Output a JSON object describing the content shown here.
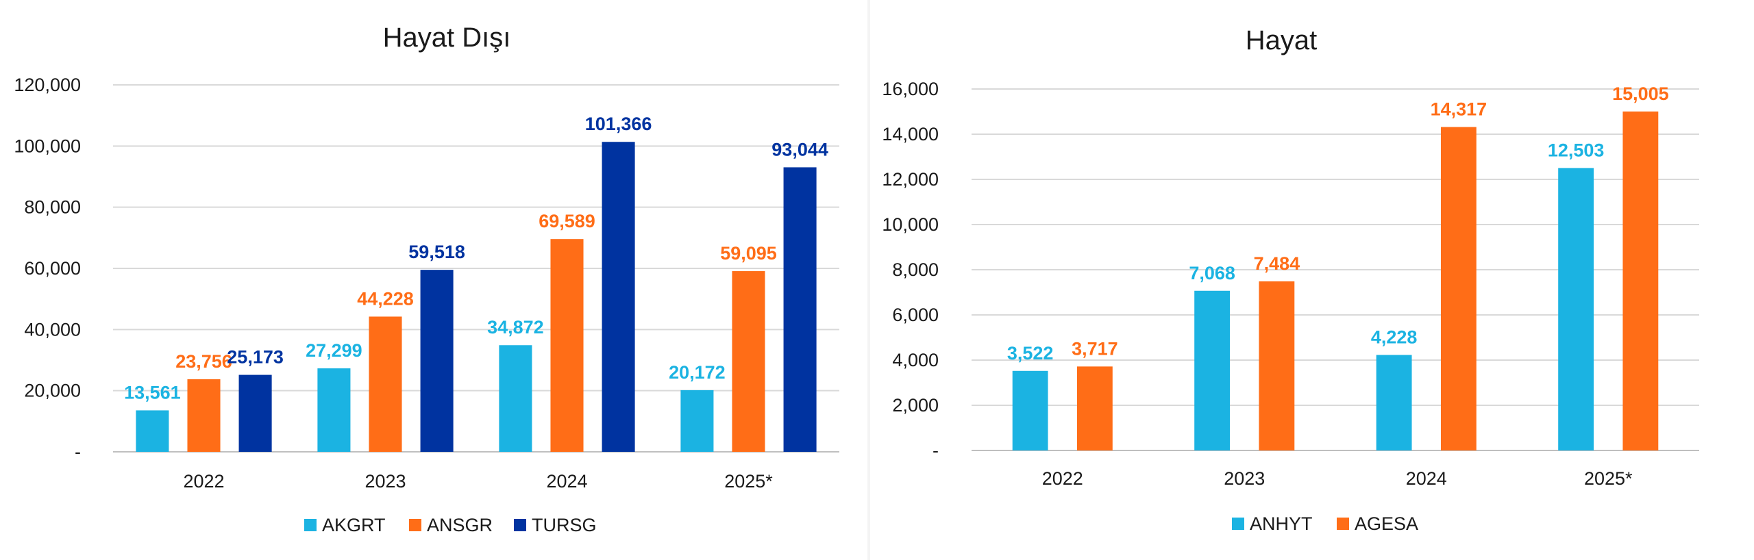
{
  "colors": {
    "AKGRT": "#1bb3e2",
    "ANSGR": "#ff6d17",
    "TURSG": "#0033a0",
    "ANHYT": "#1bb3e2",
    "AGESA": "#ff6d17",
    "label_light": "#1bb3e2",
    "label_orange": "#ff6d17",
    "label_dark": "#0033a0"
  },
  "chart_data": [
    {
      "type": "bar",
      "title": "Hayat Dışı",
      "categories": [
        "2022",
        "2023",
        "2024",
        "2025*"
      ],
      "series": [
        {
          "name": "AKGRT",
          "values": [
            13561,
            27299,
            34872,
            20172
          ],
          "labels": [
            "13,561",
            "27,299",
            "34,872",
            "20,172"
          ]
        },
        {
          "name": "ANSGR",
          "values": [
            23756,
            44228,
            69589,
            59095
          ],
          "labels": [
            "23,756",
            "44,228",
            "69,589",
            "59,095"
          ]
        },
        {
          "name": "TURSG",
          "values": [
            25173,
            59518,
            101366,
            93044
          ],
          "labels": [
            "25,173",
            "59,518",
            "101,366",
            "93,044"
          ]
        }
      ],
      "ylim": [
        0,
        120000
      ],
      "yticks": [
        0,
        20000,
        40000,
        60000,
        80000,
        100000,
        120000
      ],
      "ytick_labels": [
        "-",
        "20,000",
        "40,000",
        "60,000",
        "80,000",
        "100,000",
        "120,000"
      ],
      "grid": true,
      "legend": "bottom"
    },
    {
      "type": "bar",
      "title": "Hayat",
      "categories": [
        "2022",
        "2023",
        "2024",
        "2025*"
      ],
      "series": [
        {
          "name": "ANHYT",
          "values": [
            3522,
            7068,
            4228,
            12503
          ],
          "labels": [
            "3,522",
            "7,068",
            "4,228",
            "12,503"
          ]
        },
        {
          "name": "AGESA",
          "values": [
            3717,
            7484,
            14317,
            15005
          ],
          "labels": [
            "3,717",
            "7,484",
            "14,317",
            "15,005"
          ]
        }
      ],
      "ylim": [
        0,
        16000
      ],
      "yticks": [
        0,
        2000,
        4000,
        6000,
        8000,
        10000,
        12000,
        14000,
        16000
      ],
      "ytick_labels": [
        "-",
        "2,000",
        "4,000",
        "6,000",
        "8,000",
        "10,000",
        "12,000",
        "14,000",
        "16,000"
      ],
      "grid": true,
      "legend": "bottom"
    }
  ]
}
